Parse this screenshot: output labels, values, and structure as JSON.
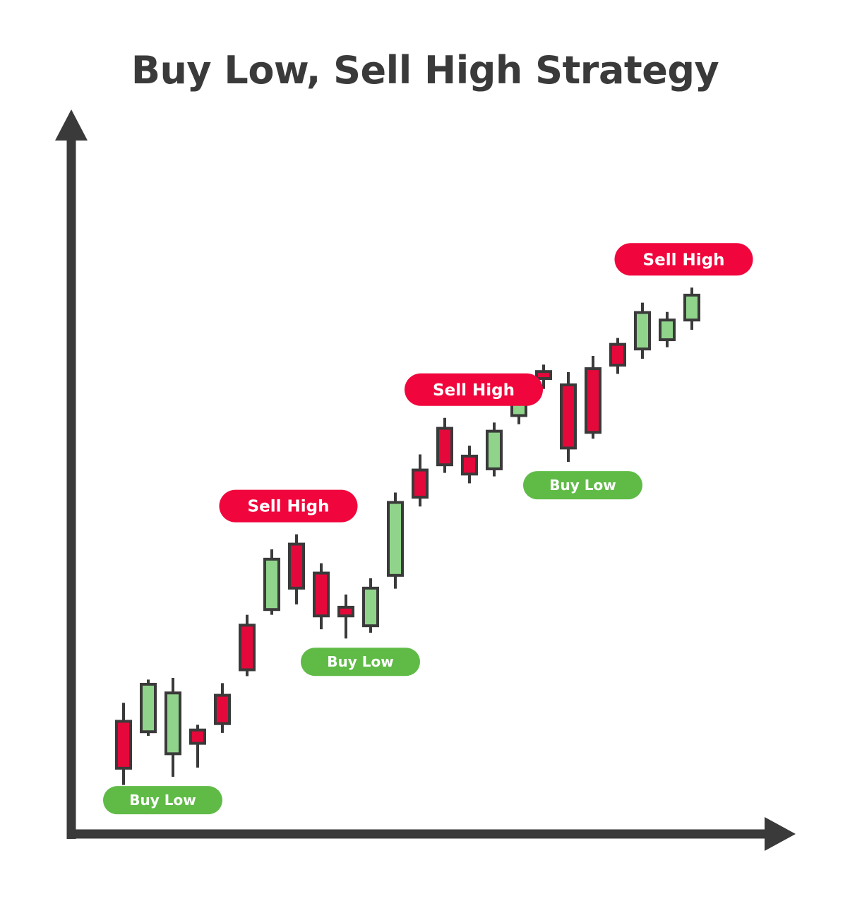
{
  "chart_data": {
    "type": "candlestick",
    "title": "Buy Low, Sell High Strategy",
    "xlabel": "",
    "ylabel": "",
    "x_ticks": "none",
    "y_ticks": "none",
    "grid": false,
    "y_range": [
      0,
      100
    ],
    "colors": {
      "up": "#8fd48a",
      "down": "#e4093a",
      "outline": "#3a3a3a",
      "axis": "#3a3a3a",
      "sell": "#f0063c",
      "buy": "#5fbb46"
    },
    "candles": [
      {
        "i": 1,
        "dir": "down",
        "high": 15.4,
        "open": 12.2,
        "close": 4.1,
        "low": 1.2
      },
      {
        "i": 2,
        "dir": "up",
        "high": 19.4,
        "open": 10.4,
        "close": 18.6,
        "low": 9.7
      },
      {
        "i": 3,
        "dir": "up",
        "high": 19.7,
        "open": 6.6,
        "close": 17.1,
        "low": 2.6
      },
      {
        "i": 4,
        "dir": "down",
        "high": 11.6,
        "open": 10.7,
        "close": 8.4,
        "low": 4.2
      },
      {
        "i": 5,
        "dir": "down",
        "high": 18.8,
        "open": 16.7,
        "close": 11.8,
        "low": 10.2
      },
      {
        "i": 6,
        "dir": "down",
        "high": 30.6,
        "open": 28.8,
        "close": 21.1,
        "low": 20.0
      },
      {
        "i": 7,
        "dir": "up",
        "high": 41.9,
        "open": 31.5,
        "close": 40.2,
        "low": 30.6
      },
      {
        "i": 8,
        "dir": "down",
        "high": 44.5,
        "open": 42.8,
        "close": 35.2,
        "low": 32.4
      },
      {
        "i": 9,
        "dir": "down",
        "high": 39.5,
        "open": 37.8,
        "close": 30.4,
        "low": 28.1
      },
      {
        "i": 10,
        "dir": "down",
        "high": 34.1,
        "open": 31.9,
        "close": 30.4,
        "low": 26.5
      },
      {
        "i": 11,
        "dir": "up",
        "high": 36.9,
        "open": 28.7,
        "close": 35.2,
        "low": 27.5
      },
      {
        "i": 12,
        "dir": "up",
        "high": 51.7,
        "open": 37.4,
        "close": 50.0,
        "low": 35.1
      },
      {
        "i": 13,
        "dir": "down",
        "high": 58.3,
        "open": 55.6,
        "close": 50.9,
        "low": 49.3
      },
      {
        "i": 14,
        "dir": "down",
        "high": 64.6,
        "open": 62.8,
        "close": 56.5,
        "low": 55.1
      },
      {
        "i": 15,
        "dir": "down",
        "high": 59.8,
        "open": 58.0,
        "close": 54.9,
        "low": 53.3
      },
      {
        "i": 16,
        "dir": "up",
        "high": 63.8,
        "open": 55.8,
        "close": 62.3,
        "low": 54.5
      },
      {
        "i": 17,
        "dir": "up",
        "high": 70.9,
        "open": 65.0,
        "close": 69.5,
        "low": 63.5
      },
      {
        "i": 18,
        "dir": "down",
        "high": 73.8,
        "open": 72.6,
        "close": 71.4,
        "low": 69.6
      },
      {
        "i": 19,
        "dir": "down",
        "high": 72.5,
        "open": 70.3,
        "close": 59.4,
        "low": 57.0
      },
      {
        "i": 20,
        "dir": "down",
        "high": 75.3,
        "open": 73.1,
        "close": 62.1,
        "low": 61.0
      },
      {
        "i": 21,
        "dir": "down",
        "high": 78.4,
        "open": 77.3,
        "close": 73.7,
        "low": 72.2
      },
      {
        "i": 22,
        "dir": "up",
        "high": 84.5,
        "open": 76.5,
        "close": 82.8,
        "low": 74.8
      },
      {
        "i": 23,
        "dir": "up",
        "high": 82.9,
        "open": 78.1,
        "close": 81.5,
        "low": 76.8
      },
      {
        "i": 24,
        "dir": "up",
        "high": 87.1,
        "open": 81.5,
        "close": 85.8,
        "low": 79.8
      }
    ],
    "annotations": [
      {
        "text": "Buy Low",
        "kind": "buy",
        "near_candles": [
          2,
          3
        ]
      },
      {
        "text": "Sell High",
        "kind": "sell",
        "near_candles": [
          7,
          8
        ]
      },
      {
        "text": "Buy Low",
        "kind": "buy",
        "near_candles": [
          10,
          11
        ]
      },
      {
        "text": "Sell High",
        "kind": "sell",
        "near_candles": [
          14,
          16
        ]
      },
      {
        "text": "Buy Low",
        "kind": "buy",
        "near_candles": [
          19,
          20
        ]
      },
      {
        "text": "Sell High",
        "kind": "sell",
        "near_candles": [
          23,
          24
        ]
      }
    ]
  }
}
